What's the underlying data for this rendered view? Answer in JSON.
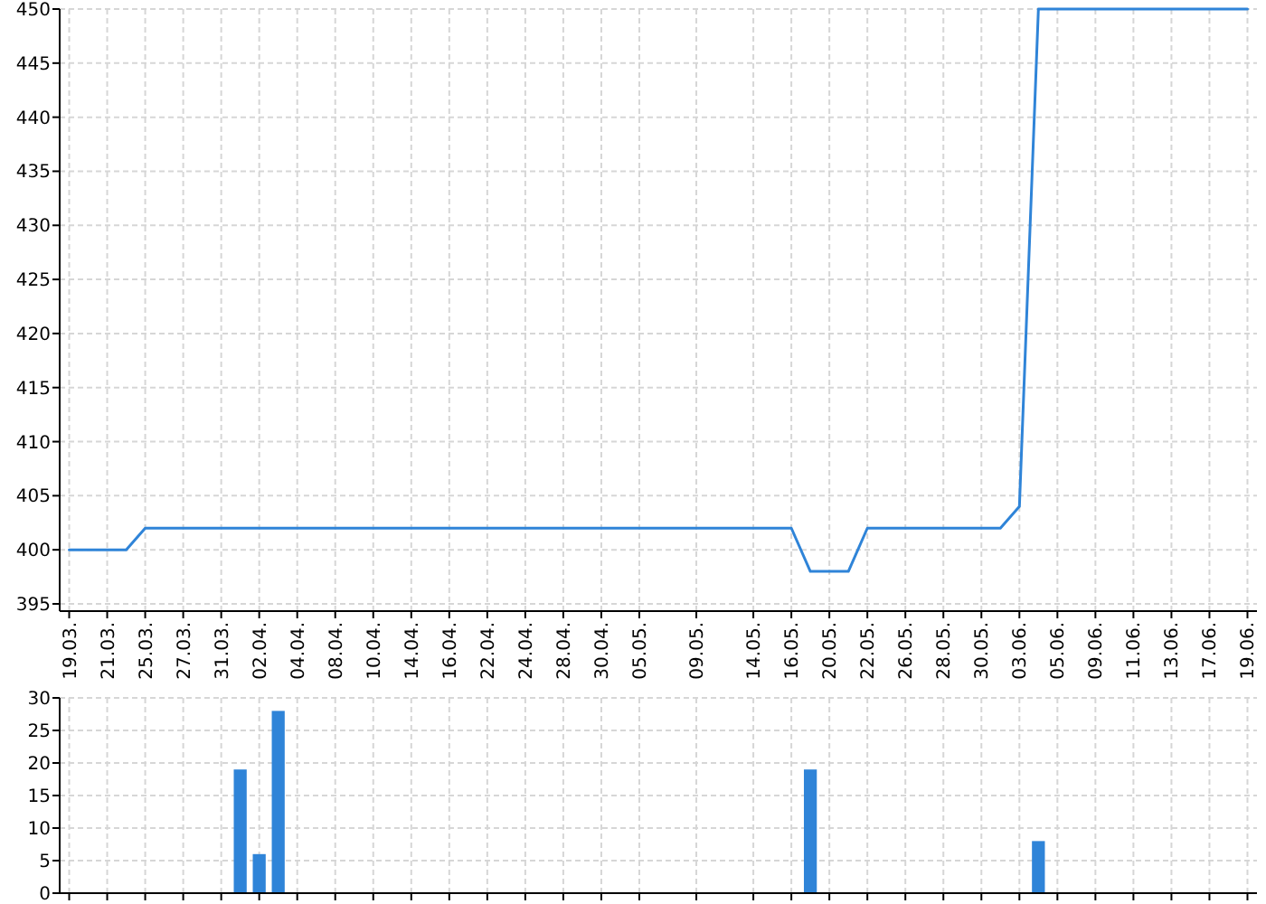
{
  "chart_data": [
    {
      "type": "line",
      "categories": [
        "19.03.",
        null,
        "21.03.",
        null,
        "25.03.",
        null,
        "27.03.",
        null,
        "31.03.",
        null,
        "02.04.",
        null,
        "04.04.",
        null,
        "08.04.",
        null,
        "10.04.",
        null,
        "14.04.",
        null,
        "16.04.",
        null,
        "22.04.",
        null,
        "24.04.",
        null,
        "28.04.",
        null,
        "30.04.",
        null,
        "05.05.",
        null,
        null,
        "09.05.",
        null,
        null,
        "14.05.",
        null,
        "16.05.",
        null,
        "20.05.",
        null,
        "22.05.",
        null,
        "26.05.",
        null,
        "28.05.",
        null,
        "30.05.",
        null,
        "03.06.",
        null,
        "05.06.",
        null,
        "09.06.",
        null,
        "11.06.",
        null,
        "13.06.",
        null,
        "17.06.",
        null,
        "19.06."
      ],
      "values": [
        400,
        400,
        400,
        400,
        402,
        402,
        402,
        402,
        402,
        402,
        402,
        402,
        402,
        402,
        402,
        402,
        402,
        402,
        402,
        402,
        402,
        402,
        402,
        402,
        402,
        402,
        402,
        402,
        402,
        402,
        402,
        402,
        402,
        402,
        402,
        402,
        402,
        402,
        402,
        398,
        398,
        398,
        402,
        402,
        402,
        402,
        402,
        402,
        402,
        402,
        404,
        450,
        450,
        450,
        450,
        450,
        450,
        450,
        450,
        450,
        450,
        450,
        450
      ],
      "color": "#2f84d8",
      "ylim": [
        395,
        450
      ],
      "yticks": [
        395,
        400,
        405,
        410,
        415,
        420,
        425,
        430,
        435,
        440,
        445,
        450
      ],
      "grid": true
    },
    {
      "type": "bar",
      "categories": [
        "19.03.",
        null,
        "21.03.",
        null,
        "25.03.",
        null,
        "27.03.",
        null,
        "31.03.",
        null,
        "02.04.",
        null,
        "04.04.",
        null,
        "08.04.",
        null,
        "10.04.",
        null,
        "14.04.",
        null,
        "16.04.",
        null,
        "22.04.",
        null,
        "24.04.",
        null,
        "28.04.",
        null,
        "30.04.",
        null,
        "05.05.",
        null,
        null,
        "09.05.",
        null,
        null,
        "14.05.",
        null,
        "16.05.",
        null,
        "20.05.",
        null,
        "22.05.",
        null,
        "26.05.",
        null,
        "28.05.",
        null,
        "30.05.",
        null,
        "03.06.",
        null,
        "05.06.",
        null,
        "09.06.",
        null,
        "11.06.",
        null,
        "13.06.",
        null,
        "17.06.",
        null,
        "19.06."
      ],
      "values": [
        null,
        null,
        null,
        null,
        null,
        null,
        null,
        null,
        null,
        19,
        6,
        28,
        null,
        null,
        null,
        null,
        null,
        null,
        null,
        null,
        null,
        null,
        null,
        null,
        null,
        null,
        null,
        null,
        null,
        null,
        null,
        null,
        null,
        null,
        null,
        null,
        null,
        null,
        null,
        19,
        null,
        null,
        null,
        null,
        null,
        null,
        null,
        null,
        null,
        null,
        null,
        8,
        null,
        null,
        null,
        null,
        null,
        null,
        null,
        null,
        null,
        null,
        null
      ],
      "color": "#2f84d8",
      "ylim": [
        0,
        30
      ],
      "yticks": [
        0,
        5,
        10,
        15,
        20,
        25,
        30
      ],
      "grid": true,
      "tick_labels": "y"
    }
  ]
}
